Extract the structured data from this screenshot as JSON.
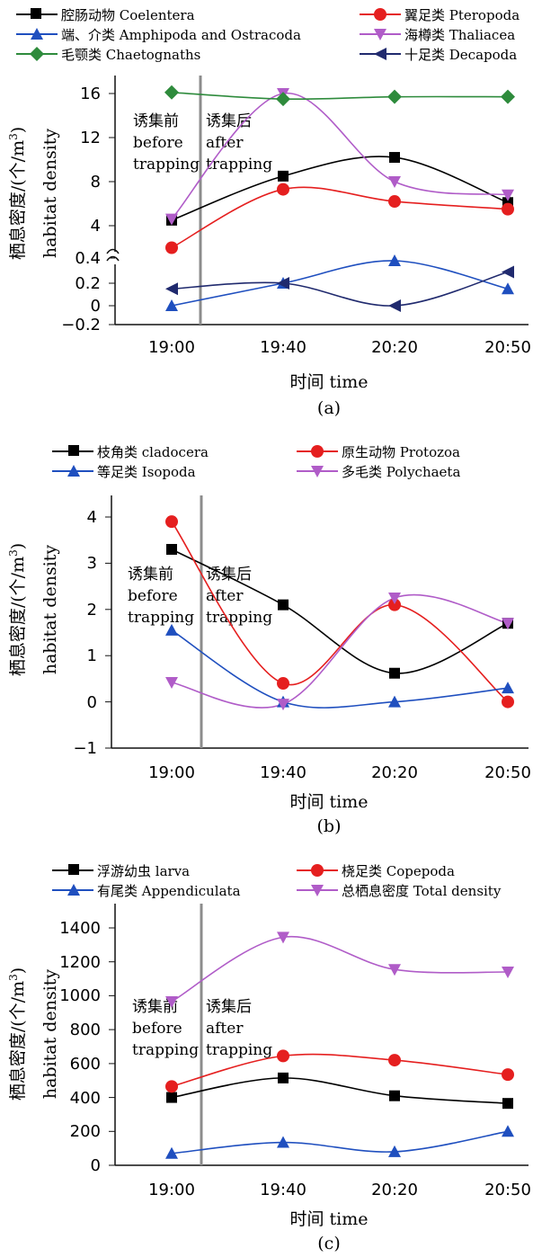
{
  "chart_data": [
    {
      "id": "a",
      "type": "line",
      "panel_label": "(a)",
      "categories": [
        "19:00",
        "19:40",
        "20:20",
        "20:50"
      ],
      "xlabel": "时间 time",
      "ylabel_cn": "栖息密度/(个/m",
      "ylabel_sup": "3",
      "ylabel_close": ")",
      "ylabel_en": "habitat density",
      "y_axis_break": true,
      "y_ticks": [
        "16",
        "12",
        "8",
        "4",
        "0.4",
        "0.2",
        "0",
        "−0.2"
      ],
      "annotation": {
        "before_cn": "诱集前",
        "before_en_1": "before",
        "before_en_2": "trapping",
        "after_cn": "诱集后",
        "after_en_1": "after",
        "after_en_2": "trapping"
      },
      "series": [
        {
          "name": "腔肠动物 Coelentera",
          "marker": "square",
          "color": "#000000",
          "values": [
            4.5,
            8.5,
            10.2,
            6.1
          ]
        },
        {
          "name": "翼足类 Pteropoda",
          "marker": "circle",
          "color": "#e51f1f",
          "values": [
            2.0,
            7.3,
            6.2,
            5.5
          ]
        },
        {
          "name": "端、介类 Amphipoda and Ostracoda",
          "marker": "triangle-up",
          "color": "#1f4fbf",
          "values": [
            0.0,
            0.2,
            0.4,
            0.15
          ]
        },
        {
          "name": "海樽类 Thaliacea",
          "marker": "triangle-down",
          "color": "#b05cc8",
          "values": [
            4.6,
            16.0,
            8.0,
            6.8
          ]
        },
        {
          "name": "毛颚类 Chaetognaths",
          "marker": "diamond",
          "color": "#2e8b3c",
          "values": [
            16.1,
            15.5,
            15.7,
            15.7
          ]
        },
        {
          "name": "十足类 Decapoda",
          "marker": "triangle-left",
          "color": "#202a6e",
          "values": [
            0.15,
            0.2,
            0.0,
            0.3
          ]
        }
      ]
    },
    {
      "id": "b",
      "type": "line",
      "panel_label": "(b)",
      "categories": [
        "19:00",
        "19:40",
        "20:20",
        "20:50"
      ],
      "xlabel": "时间 time",
      "ylabel_cn": "栖息密度/(个/m",
      "ylabel_sup": "3",
      "ylabel_close": ")",
      "ylabel_en": "habitat density",
      "ylim": [
        -1,
        4
      ],
      "y_ticks": [
        "4",
        "3",
        "2",
        "1",
        "0",
        "−1"
      ],
      "annotation": {
        "before_cn": "诱集前",
        "before_en_1": "before",
        "before_en_2": "trapping",
        "after_cn": "诱集后",
        "after_en_1": "after",
        "after_en_2": "trapping"
      },
      "series": [
        {
          "name": "枝角类 cladocera",
          "marker": "square",
          "color": "#000000",
          "values": [
            3.3,
            2.1,
            0.62,
            1.7
          ]
        },
        {
          "name": "原生动物 Protozoa",
          "marker": "circle",
          "color": "#e51f1f",
          "values": [
            3.9,
            0.4,
            2.1,
            0.0
          ]
        },
        {
          "name": "等足类 Isopoda",
          "marker": "triangle-up",
          "color": "#1f4fbf",
          "values": [
            1.55,
            0.0,
            0.0,
            0.3
          ]
        },
        {
          "name": "多毛类 Polychaeta",
          "marker": "triangle-down",
          "color": "#b05cc8",
          "values": [
            0.42,
            -0.05,
            2.25,
            1.7
          ]
        }
      ]
    },
    {
      "id": "c",
      "type": "line",
      "panel_label": "(c)",
      "categories": [
        "19:00",
        "19:40",
        "20:20",
        "20:50"
      ],
      "xlabel": "时间 time",
      "ylabel_cn": "栖息密度/(个/m",
      "ylabel_sup": "3",
      "ylabel_close": ")",
      "ylabel_en": "habitat density",
      "ylim": [
        0,
        1400
      ],
      "y_ticks": [
        "1400",
        "1200",
        "1000",
        "800",
        "600",
        "400",
        "200",
        "0"
      ],
      "annotation": {
        "before_cn": "诱集前",
        "before_en_1": "before",
        "before_en_2": "trapping",
        "after_cn": "诱集后",
        "after_en_1": "after",
        "after_en_2": "trapping"
      },
      "series": [
        {
          "name": "浮游幼虫 larva",
          "marker": "square",
          "color": "#000000",
          "values": [
            400,
            515,
            410,
            365
          ]
        },
        {
          "name": "桡足类 Copepoda",
          "marker": "circle",
          "color": "#e51f1f",
          "values": [
            465,
            645,
            620,
            535
          ]
        },
        {
          "name": "有尾类 Appendiculata",
          "marker": "triangle-up",
          "color": "#1f4fbf",
          "values": [
            70,
            135,
            80,
            200
          ]
        },
        {
          "name": "总栖息密度 Total density",
          "marker": "triangle-down",
          "color": "#b05cc8",
          "values": [
            965,
            1345,
            1155,
            1140
          ]
        }
      ]
    }
  ]
}
